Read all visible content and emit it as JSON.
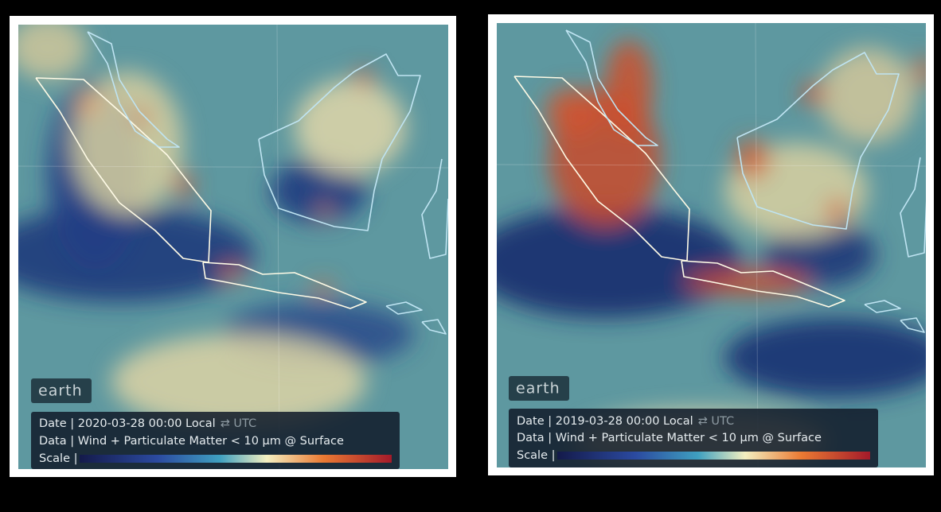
{
  "panels": [
    {
      "logo": "earth",
      "date": "Date | 2020-03-28 00:00 Local",
      "utc": "⇄ UTC",
      "data_line": "Data | Wind + Particulate Matter < 10 μm @ Surface",
      "scale": "Scale |"
    },
    {
      "logo": "earth",
      "date": "Date | 2019-03-28 00:00 Local",
      "utc": "⇄ UTC",
      "data_line": "Data | Wind + Particulate Matter < 10 μm @ Surface",
      "scale": "Scale |"
    }
  ]
}
